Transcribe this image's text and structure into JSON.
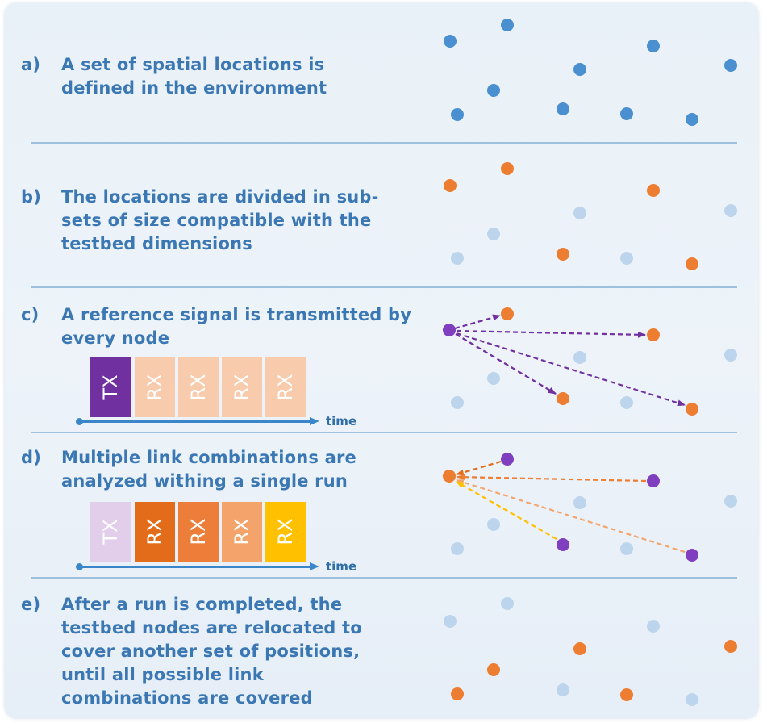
{
  "steps": [
    {
      "letter": "a)",
      "text": "A set of spatial locations is\ndefined in the environment"
    },
    {
      "letter": "b)",
      "text": "The locations are divided in sub-\nsets of size compatible with the\ntestbed dimensions"
    },
    {
      "letter": "c)",
      "text": "A reference signal is transmitted by\nevery node"
    },
    {
      "letter": "d)",
      "text": "Multiple link combinations are\nanalyzed withing a single run"
    },
    {
      "letter": "e)",
      "text": "After a run is completed, the\ntestbed nodes are relocated to\ncover another set of positions,\nuntil all possible link\ncombinations are covered"
    }
  ],
  "timeline_c": {
    "label": "time",
    "slots": [
      {
        "text": "TX",
        "color": "#7030a0"
      },
      {
        "text": "RX",
        "color": "#f7cbac"
      },
      {
        "text": "RX",
        "color": "#f7cbac"
      },
      {
        "text": "RX",
        "color": "#f7cbac"
      },
      {
        "text": "RX",
        "color": "#f7cbac"
      }
    ]
  },
  "timeline_d": {
    "label": "time",
    "slots": [
      {
        "text": "TX",
        "color": "#e2cdea"
      },
      {
        "text": "RX",
        "color": "#e36c1a"
      },
      {
        "text": "RX",
        "color": "#ec7e3a"
      },
      {
        "text": "RX",
        "color": "#f4a46a"
      },
      {
        "text": "RX",
        "color": "#ffc000"
      }
    ]
  },
  "colors": {
    "text": "#3b78b3",
    "location_blue": "#4a8fcf",
    "location_faded": "#bcd5ec",
    "subset_orange": "#ed7d31",
    "transmitter_purple": "#7f3fbf",
    "divider": "#9ec0df"
  }
}
